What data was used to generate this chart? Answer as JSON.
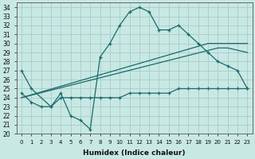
{
  "xlabel": "Humidex (Indice chaleur)",
  "bg_color": "#c8e8e4",
  "grid_color": "#a8ccc8",
  "line_color": "#1a6b6b",
  "xlim": [
    -0.5,
    23.5
  ],
  "ylim": [
    20,
    34.5
  ],
  "yticks": [
    20,
    21,
    22,
    23,
    24,
    25,
    26,
    27,
    28,
    29,
    30,
    31,
    32,
    33,
    34
  ],
  "xticks": [
    0,
    1,
    2,
    3,
    4,
    5,
    6,
    7,
    8,
    9,
    10,
    11,
    12,
    13,
    14,
    15,
    16,
    17,
    18,
    19,
    20,
    21,
    22,
    23
  ],
  "line1_x": [
    0,
    1,
    3,
    4,
    5,
    6,
    7,
    8,
    9,
    10,
    11,
    12,
    13,
    14,
    15,
    16,
    17,
    18,
    19,
    20,
    21,
    22,
    23
  ],
  "line1_y": [
    27,
    25,
    23,
    24.5,
    22,
    21.5,
    20.5,
    28.5,
    30,
    32,
    33.5,
    34,
    33.5,
    31.5,
    31.5,
    32,
    31,
    30,
    29,
    28,
    27.5,
    27,
    25
  ],
  "line2_x": [
    0,
    1,
    2,
    3,
    4,
    5,
    6,
    7,
    8,
    9,
    10,
    11,
    12,
    13,
    14,
    15,
    16,
    17,
    18,
    19,
    20,
    21,
    22,
    23
  ],
  "line2_y": [
    24.5,
    23.5,
    23,
    23,
    24,
    24,
    24,
    24,
    24,
    24,
    24,
    24.5,
    24.5,
    24.5,
    24.5,
    24.5,
    25,
    25,
    25,
    25,
    25,
    25,
    25,
    25
  ],
  "line3_x": [
    0,
    19,
    20,
    23
  ],
  "line3_y": [
    24,
    30,
    30,
    30
  ],
  "line4_x": [
    0,
    20,
    21,
    23
  ],
  "line4_y": [
    24,
    29.5,
    29.5,
    29
  ]
}
